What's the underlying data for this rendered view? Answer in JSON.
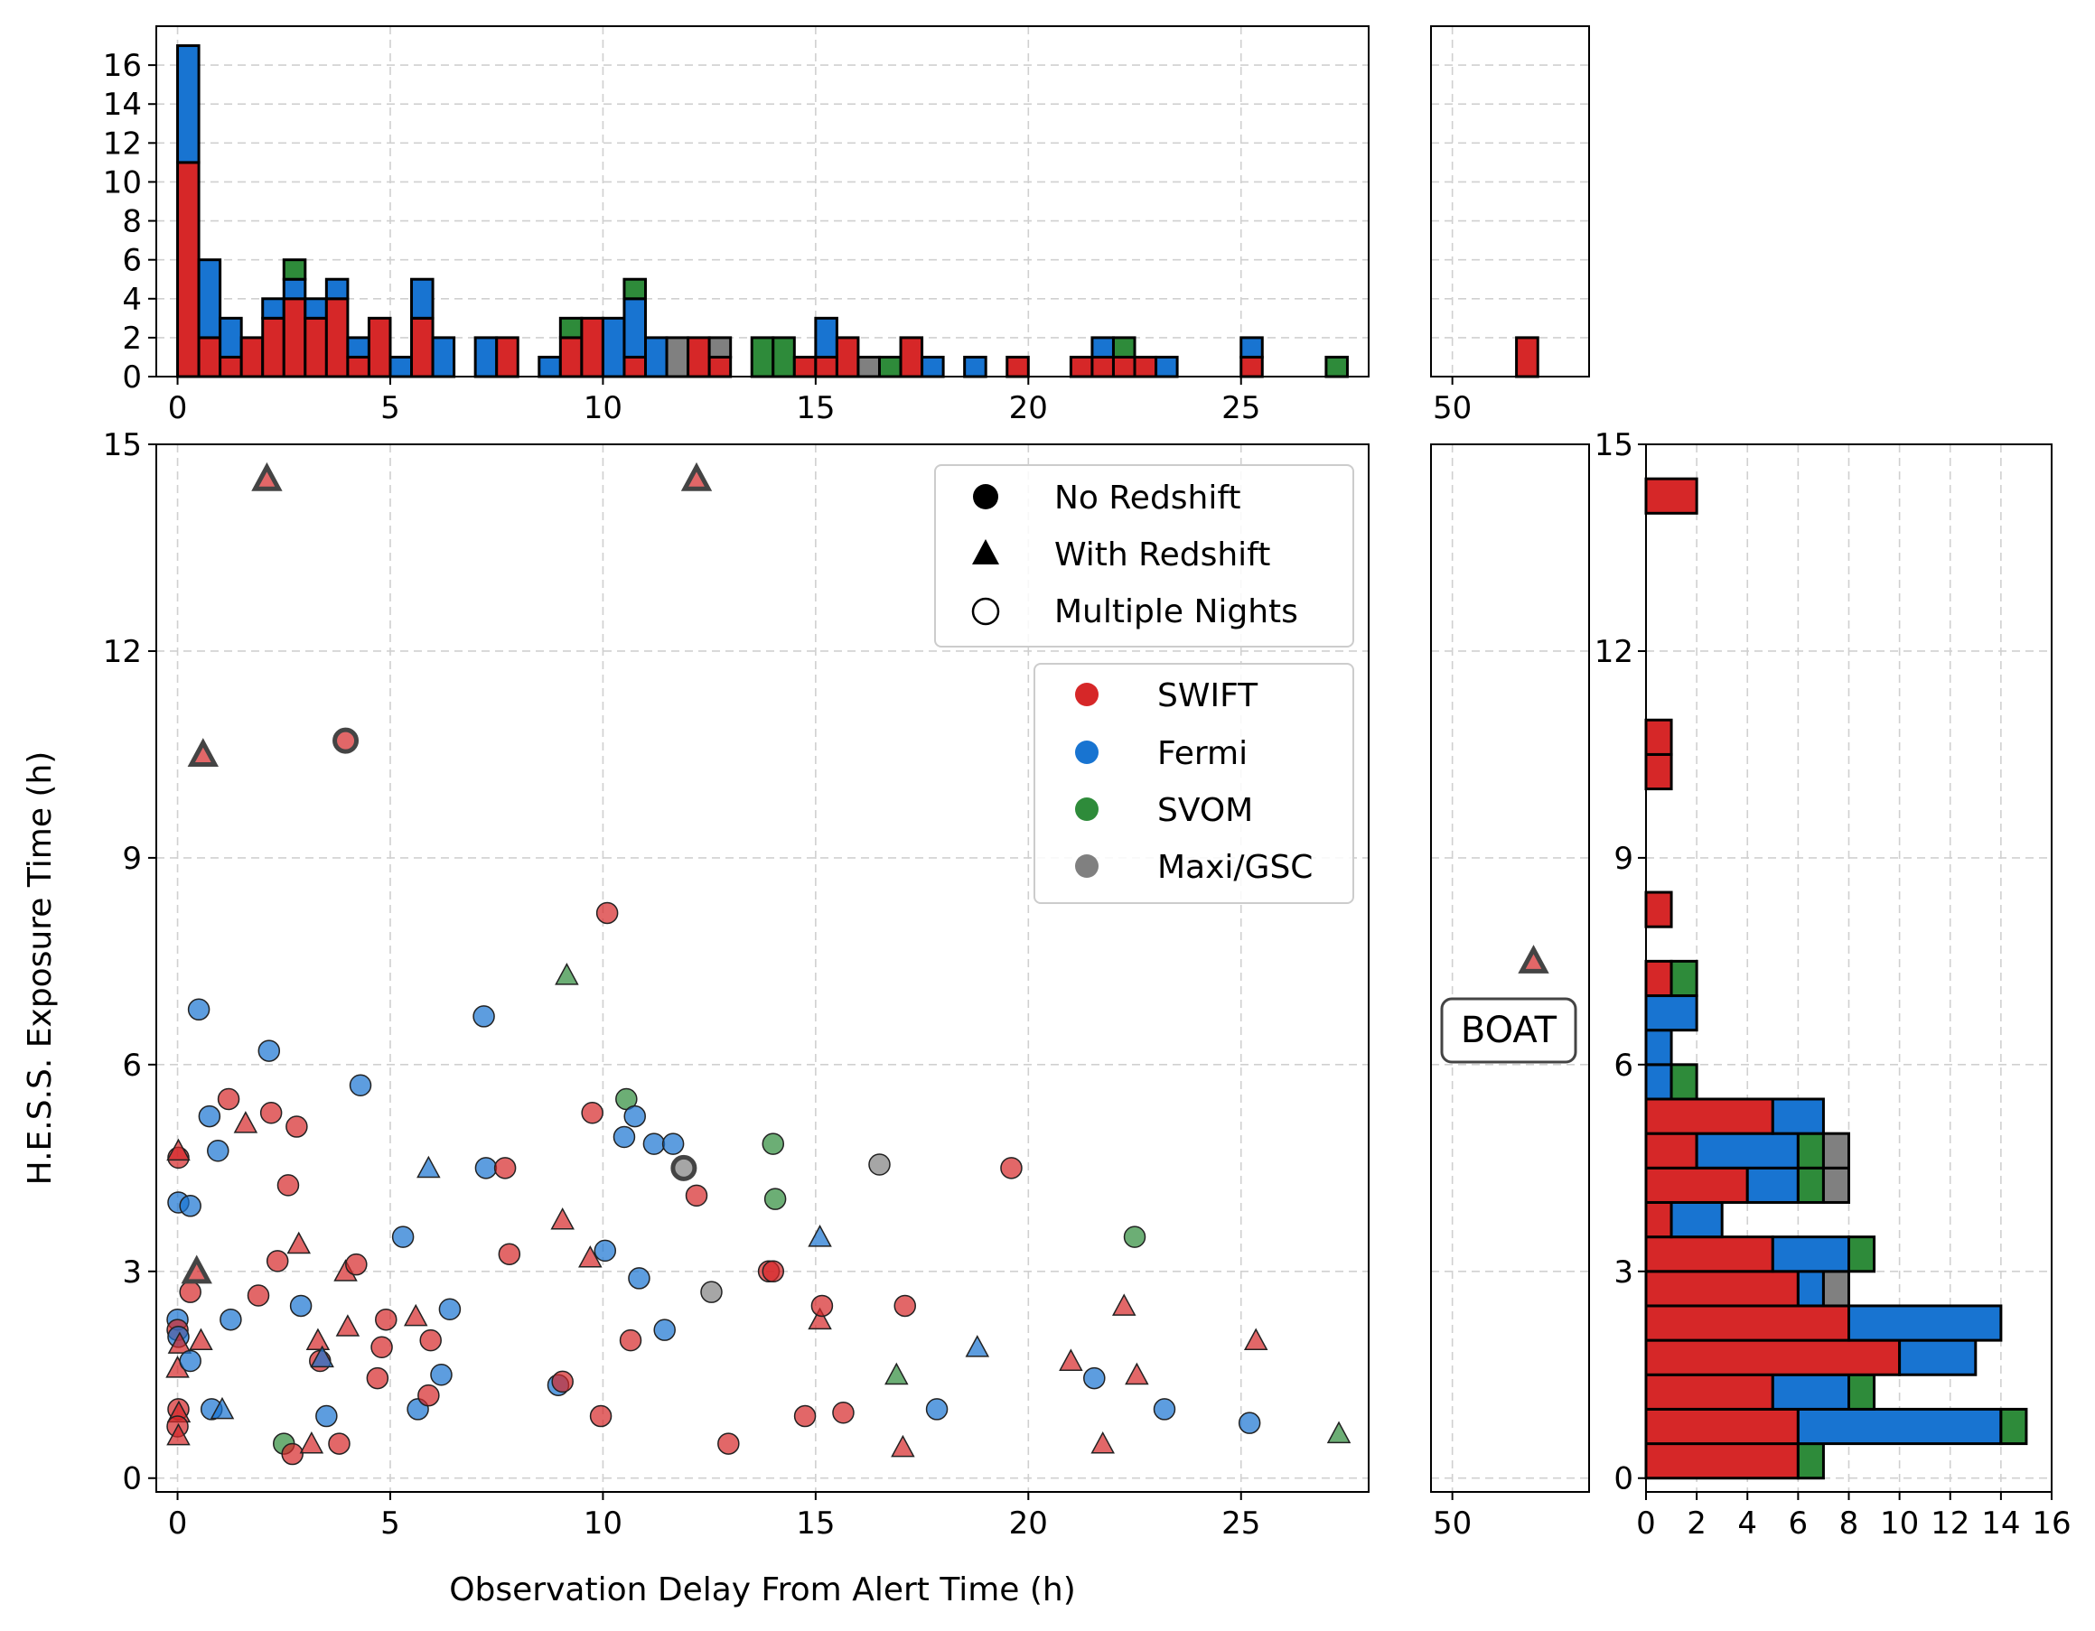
{
  "chart_data": {
    "type": "scatter",
    "xlabel": "Observation Delay From Alert Time (h)",
    "ylabel": "H.E.S.S. Exposure Time (h)",
    "xlim": [
      -0.5,
      28
    ],
    "ylim": [
      -0.2,
      15
    ],
    "xticks": [
      0,
      5,
      10,
      15,
      20,
      25
    ],
    "yticks": [
      0,
      3,
      6,
      9,
      12,
      15
    ],
    "colors": {
      "SWIFT": "#d62728",
      "Fermi": "#1874d1",
      "SVOM": "#2e8b3a",
      "Maxi/GSC": "#808080"
    },
    "legend_markers": [
      {
        "label": "No Redshift",
        "shape": "circle"
      },
      {
        "label": "With Redshift",
        "shape": "triangle"
      },
      {
        "label": "Multiple Nights",
        "shape": "open-circle"
      }
    ],
    "legend_instruments": [
      {
        "label": "SWIFT",
        "key": "SWIFT"
      },
      {
        "label": "Fermi",
        "key": "Fermi"
      },
      {
        "label": "SVOM",
        "key": "SVOM"
      },
      {
        "label": "Maxi/GSC",
        "key": "Maxi/GSC"
      }
    ],
    "points": [
      {
        "x": 0.02,
        "y": 4.65,
        "i": "SWIFT",
        "s": "c"
      },
      {
        "x": 0.02,
        "y": 4.75,
        "i": "SWIFT",
        "s": "t"
      },
      {
        "x": 0.02,
        "y": 4.0,
        "i": "Fermi",
        "s": "c"
      },
      {
        "x": 0.3,
        "y": 3.95,
        "i": "Fermi",
        "s": "c"
      },
      {
        "x": 0.0,
        "y": 2.3,
        "i": "Fermi",
        "s": "c"
      },
      {
        "x": 0.0,
        "y": 2.15,
        "i": "SWIFT",
        "s": "c"
      },
      {
        "x": 0.02,
        "y": 2.05,
        "i": "Fermi",
        "s": "c"
      },
      {
        "x": 0.05,
        "y": 1.95,
        "i": "SWIFT",
        "s": "t"
      },
      {
        "x": 0.0,
        "y": 1.6,
        "i": "SWIFT",
        "s": "t"
      },
      {
        "x": 0.3,
        "y": 1.7,
        "i": "Fermi",
        "s": "c"
      },
      {
        "x": 0.02,
        "y": 1.0,
        "i": "SWIFT",
        "s": "c"
      },
      {
        "x": 0.03,
        "y": 0.95,
        "i": "SWIFT",
        "s": "t"
      },
      {
        "x": 0.0,
        "y": 0.75,
        "i": "SWIFT",
        "s": "c"
      },
      {
        "x": 0.02,
        "y": 0.62,
        "i": "SWIFT",
        "s": "t"
      },
      {
        "x": 0.3,
        "y": 2.7,
        "i": "SWIFT",
        "s": "c"
      },
      {
        "x": 0.45,
        "y": 3.0,
        "i": "SWIFT",
        "s": "t",
        "m": true
      },
      {
        "x": 0.55,
        "y": 2.0,
        "i": "SWIFT",
        "s": "t"
      },
      {
        "x": 0.5,
        "y": 6.8,
        "i": "Fermi",
        "s": "c"
      },
      {
        "x": 0.6,
        "y": 10.5,
        "i": "SWIFT",
        "s": "t",
        "m": true
      },
      {
        "x": 0.75,
        "y": 5.25,
        "i": "Fermi",
        "s": "c"
      },
      {
        "x": 0.8,
        "y": 1.0,
        "i": "Fermi",
        "s": "c"
      },
      {
        "x": 0.95,
        "y": 4.75,
        "i": "Fermi",
        "s": "c"
      },
      {
        "x": 1.05,
        "y": 1.0,
        "i": "Fermi",
        "s": "t"
      },
      {
        "x": 1.2,
        "y": 5.5,
        "i": "SWIFT",
        "s": "c"
      },
      {
        "x": 1.25,
        "y": 2.3,
        "i": "Fermi",
        "s": "c"
      },
      {
        "x": 1.6,
        "y": 5.15,
        "i": "SWIFT",
        "s": "t"
      },
      {
        "x": 1.9,
        "y": 2.65,
        "i": "SWIFT",
        "s": "c"
      },
      {
        "x": 2.1,
        "y": 14.5,
        "i": "SWIFT",
        "s": "t",
        "m": true
      },
      {
        "x": 2.15,
        "y": 6.2,
        "i": "Fermi",
        "s": "c"
      },
      {
        "x": 2.2,
        "y": 5.3,
        "i": "SWIFT",
        "s": "c"
      },
      {
        "x": 2.35,
        "y": 3.15,
        "i": "SWIFT",
        "s": "c"
      },
      {
        "x": 2.5,
        "y": 0.5,
        "i": "SVOM",
        "s": "c"
      },
      {
        "x": 2.6,
        "y": 4.25,
        "i": "SWIFT",
        "s": "c"
      },
      {
        "x": 2.7,
        "y": 0.35,
        "i": "SWIFT",
        "s": "c"
      },
      {
        "x": 2.8,
        "y": 5.1,
        "i": "SWIFT",
        "s": "c"
      },
      {
        "x": 2.85,
        "y": 3.4,
        "i": "SWIFT",
        "s": "t"
      },
      {
        "x": 2.9,
        "y": 2.5,
        "i": "Fermi",
        "s": "c"
      },
      {
        "x": 3.15,
        "y": 0.5,
        "i": "SWIFT",
        "s": "t"
      },
      {
        "x": 3.3,
        "y": 2.0,
        "i": "SWIFT",
        "s": "t"
      },
      {
        "x": 3.35,
        "y": 1.7,
        "i": "SWIFT",
        "s": "c"
      },
      {
        "x": 3.4,
        "y": 1.75,
        "i": "Fermi",
        "s": "t"
      },
      {
        "x": 3.5,
        "y": 0.9,
        "i": "Fermi",
        "s": "c"
      },
      {
        "x": 3.8,
        "y": 0.5,
        "i": "SWIFT",
        "s": "c"
      },
      {
        "x": 3.95,
        "y": 10.7,
        "i": "SWIFT",
        "s": "c",
        "m": true
      },
      {
        "x": 3.95,
        "y": 3.0,
        "i": "SWIFT",
        "s": "t"
      },
      {
        "x": 4.0,
        "y": 2.2,
        "i": "SWIFT",
        "s": "t"
      },
      {
        "x": 4.2,
        "y": 3.1,
        "i": "SWIFT",
        "s": "c"
      },
      {
        "x": 4.3,
        "y": 5.7,
        "i": "Fermi",
        "s": "c"
      },
      {
        "x": 4.7,
        "y": 1.45,
        "i": "SWIFT",
        "s": "c"
      },
      {
        "x": 4.8,
        "y": 1.9,
        "i": "SWIFT",
        "s": "c"
      },
      {
        "x": 4.9,
        "y": 2.3,
        "i": "SWIFT",
        "s": "c"
      },
      {
        "x": 5.3,
        "y": 3.5,
        "i": "Fermi",
        "s": "c"
      },
      {
        "x": 5.6,
        "y": 2.35,
        "i": "SWIFT",
        "s": "t"
      },
      {
        "x": 5.65,
        "y": 1.0,
        "i": "Fermi",
        "s": "c"
      },
      {
        "x": 5.9,
        "y": 4.5,
        "i": "Fermi",
        "s": "t"
      },
      {
        "x": 5.9,
        "y": 1.2,
        "i": "SWIFT",
        "s": "c"
      },
      {
        "x": 5.95,
        "y": 2.0,
        "i": "SWIFT",
        "s": "c"
      },
      {
        "x": 6.2,
        "y": 1.5,
        "i": "Fermi",
        "s": "c"
      },
      {
        "x": 6.4,
        "y": 2.45,
        "i": "Fermi",
        "s": "c"
      },
      {
        "x": 7.2,
        "y": 6.7,
        "i": "Fermi",
        "s": "c"
      },
      {
        "x": 7.25,
        "y": 4.5,
        "i": "Fermi",
        "s": "c"
      },
      {
        "x": 7.7,
        "y": 4.5,
        "i": "SWIFT",
        "s": "c"
      },
      {
        "x": 7.8,
        "y": 3.25,
        "i": "SWIFT",
        "s": "c"
      },
      {
        "x": 8.95,
        "y": 1.35,
        "i": "Fermi",
        "s": "c"
      },
      {
        "x": 9.05,
        "y": 1.4,
        "i": "SWIFT",
        "s": "c"
      },
      {
        "x": 9.05,
        "y": 3.75,
        "i": "SWIFT",
        "s": "t"
      },
      {
        "x": 9.15,
        "y": 7.3,
        "i": "SVOM",
        "s": "t"
      },
      {
        "x": 9.7,
        "y": 3.2,
        "i": "SWIFT",
        "s": "t"
      },
      {
        "x": 9.75,
        "y": 5.3,
        "i": "SWIFT",
        "s": "c"
      },
      {
        "x": 9.95,
        "y": 0.9,
        "i": "SWIFT",
        "s": "c"
      },
      {
        "x": 10.05,
        "y": 3.3,
        "i": "Fermi",
        "s": "c"
      },
      {
        "x": 10.1,
        "y": 8.2,
        "i": "SWIFT",
        "s": "c"
      },
      {
        "x": 10.5,
        "y": 4.95,
        "i": "Fermi",
        "s": "c"
      },
      {
        "x": 10.55,
        "y": 5.5,
        "i": "SVOM",
        "s": "c"
      },
      {
        "x": 10.65,
        "y": 2.0,
        "i": "SWIFT",
        "s": "c"
      },
      {
        "x": 10.75,
        "y": 5.25,
        "i": "Fermi",
        "s": "c"
      },
      {
        "x": 10.85,
        "y": 2.9,
        "i": "Fermi",
        "s": "c"
      },
      {
        "x": 11.2,
        "y": 4.85,
        "i": "Fermi",
        "s": "c"
      },
      {
        "x": 11.45,
        "y": 2.15,
        "i": "Fermi",
        "s": "c"
      },
      {
        "x": 11.65,
        "y": 4.85,
        "i": "Fermi",
        "s": "c"
      },
      {
        "x": 11.9,
        "y": 4.5,
        "i": "Maxi/GSC",
        "s": "c",
        "m": true
      },
      {
        "x": 12.2,
        "y": 14.5,
        "i": "SWIFT",
        "s": "t",
        "m": true
      },
      {
        "x": 12.2,
        "y": 4.1,
        "i": "SWIFT",
        "s": "c"
      },
      {
        "x": 12.55,
        "y": 2.7,
        "i": "Maxi/GSC",
        "s": "c"
      },
      {
        "x": 12.95,
        "y": 0.5,
        "i": "SWIFT",
        "s": "c"
      },
      {
        "x": 13.9,
        "y": 3.0,
        "i": "SWIFT",
        "s": "c"
      },
      {
        "x": 14.0,
        "y": 3.0,
        "i": "SWIFT",
        "s": "c"
      },
      {
        "x": 14.0,
        "y": 4.85,
        "i": "SVOM",
        "s": "c"
      },
      {
        "x": 14.05,
        "y": 4.05,
        "i": "SVOM",
        "s": "c"
      },
      {
        "x": 14.75,
        "y": 0.9,
        "i": "SWIFT",
        "s": "c"
      },
      {
        "x": 15.1,
        "y": 3.5,
        "i": "Fermi",
        "s": "t"
      },
      {
        "x": 15.1,
        "y": 2.3,
        "i": "SWIFT",
        "s": "t"
      },
      {
        "x": 15.15,
        "y": 2.5,
        "i": "SWIFT",
        "s": "c"
      },
      {
        "x": 15.65,
        "y": 0.95,
        "i": "SWIFT",
        "s": "c"
      },
      {
        "x": 16.5,
        "y": 4.55,
        "i": "Maxi/GSC",
        "s": "c"
      },
      {
        "x": 16.9,
        "y": 1.5,
        "i": "SVOM",
        "s": "t"
      },
      {
        "x": 17.05,
        "y": 0.45,
        "i": "SWIFT",
        "s": "t"
      },
      {
        "x": 17.1,
        "y": 2.5,
        "i": "SWIFT",
        "s": "c"
      },
      {
        "x": 17.85,
        "y": 1.0,
        "i": "Fermi",
        "s": "c"
      },
      {
        "x": 18.8,
        "y": 1.9,
        "i": "Fermi",
        "s": "t"
      },
      {
        "x": 19.6,
        "y": 4.5,
        "i": "SWIFT",
        "s": "c"
      },
      {
        "x": 21.0,
        "y": 1.7,
        "i": "SWIFT",
        "s": "t"
      },
      {
        "x": 21.55,
        "y": 1.45,
        "i": "Fermi",
        "s": "c"
      },
      {
        "x": 21.75,
        "y": 0.5,
        "i": "SWIFT",
        "s": "t"
      },
      {
        "x": 22.25,
        "y": 2.5,
        "i": "SWIFT",
        "s": "t"
      },
      {
        "x": 22.5,
        "y": 3.5,
        "i": "SVOM",
        "s": "c"
      },
      {
        "x": 22.55,
        "y": 1.5,
        "i": "SWIFT",
        "s": "t"
      },
      {
        "x": 23.2,
        "y": 1.0,
        "i": "Fermi",
        "s": "c"
      },
      {
        "x": 25.2,
        "y": 0.8,
        "i": "Fermi",
        "s": "c"
      },
      {
        "x": 25.35,
        "y": 2.0,
        "i": "SWIFT",
        "s": "t"
      },
      {
        "x": 27.3,
        "y": 0.65,
        "i": "SVOM",
        "s": "t"
      }
    ],
    "top_histogram": {
      "bin_start": 0,
      "bin_width": 0.5,
      "ylim": [
        0,
        18
      ],
      "yticks": [
        0,
        2,
        4,
        6,
        8,
        10,
        12,
        14,
        16
      ],
      "bins": [
        {
          "b": 0,
          "SWIFT": 11,
          "Fermi": 6
        },
        {
          "b": 1,
          "SWIFT": 2,
          "Fermi": 4
        },
        {
          "b": 2,
          "SWIFT": 1,
          "Fermi": 2
        },
        {
          "b": 3,
          "SWIFT": 2
        },
        {
          "b": 4,
          "SWIFT": 3,
          "Fermi": 1
        },
        {
          "b": 5,
          "SWIFT": 4,
          "SVOM": 1,
          "Fermi": 1
        },
        {
          "b": 6,
          "SWIFT": 3,
          "Fermi": 1
        },
        {
          "b": 7,
          "SWIFT": 4,
          "Fermi": 1
        },
        {
          "b": 8,
          "SWIFT": 1,
          "Fermi": 1
        },
        {
          "b": 9,
          "SWIFT": 3
        },
        {
          "b": 10,
          "Fermi": 1
        },
        {
          "b": 11,
          "SWIFT": 3,
          "Fermi": 2
        },
        {
          "b": 12,
          "Fermi": 2
        },
        {
          "b": 14,
          "Fermi": 2
        },
        {
          "b": 15,
          "SWIFT": 2
        },
        {
          "b": 17,
          "Fermi": 1
        },
        {
          "b": 18,
          "SWIFT": 2,
          "SVOM": 1
        },
        {
          "b": 19,
          "SWIFT": 3
        },
        {
          "b": 20,
          "Fermi": 3
        },
        {
          "b": 21,
          "SWIFT": 1,
          "Fermi": 3,
          "SVOM": 1
        },
        {
          "b": 22,
          "Fermi": 2
        },
        {
          "b": 23,
          "Maxi/GSC": 2
        },
        {
          "b": 24,
          "SWIFT": 2
        },
        {
          "b": 25,
          "SWIFT": 1,
          "Maxi/GSC": 1
        },
        {
          "b": 27,
          "SVOM": 2
        },
        {
          "b": 28,
          "SVOM": 2
        },
        {
          "b": 29,
          "SWIFT": 1
        },
        {
          "b": 30,
          "Fermi": 2,
          "SWIFT": 1
        },
        {
          "b": 31,
          "SWIFT": 2
        },
        {
          "b": 32,
          "Maxi/GSC": 1
        },
        {
          "b": 33,
          "SVOM": 1
        },
        {
          "b": 34,
          "SWIFT": 2
        },
        {
          "b": 35,
          "Fermi": 1
        },
        {
          "b": 37,
          "Fermi": 1
        },
        {
          "b": 39,
          "SWIFT": 1
        },
        {
          "b": 42,
          "SWIFT": 1
        },
        {
          "b": 43,
          "SWIFT": 1,
          "Fermi": 1
        },
        {
          "b": 44,
          "SWIFT": 1,
          "SVOM": 1
        },
        {
          "b": 45,
          "SWIFT": 1
        },
        {
          "b": 46,
          "Fermi": 1
        },
        {
          "b": 50,
          "SWIFT": 1,
          "Fermi": 1
        },
        {
          "b": 54,
          "SVOM": 1
        }
      ]
    },
    "boat": {
      "label": "BOAT",
      "x": 51.9,
      "y": 7.5,
      "xlim": [
        49.5,
        53.2
      ],
      "xticks": [
        50
      ],
      "instrument": "SWIFT",
      "shape": "triangle",
      "multi_night": true,
      "hist_bin": [
        51.5,
        52.0
      ],
      "hist_value": 2
    },
    "right_histogram": {
      "bin_start": 0,
      "bin_width": 0.5,
      "xlim": [
        0,
        16
      ],
      "xticks": [
        0,
        2,
        4,
        6,
        8,
        10,
        12,
        14,
        16
      ],
      "bins": [
        {
          "b": 0,
          "SWIFT": 6,
          "SVOM": 1
        },
        {
          "b": 1,
          "SWIFT": 6,
          "Fermi": 8,
          "SVOM": 1
        },
        {
          "b": 2,
          "SWIFT": 5,
          "Fermi": 3,
          "SVOM": 1
        },
        {
          "b": 3,
          "SWIFT": 10,
          "Fermi": 3
        },
        {
          "b": 4,
          "SWIFT": 8,
          "Fermi": 6
        },
        {
          "b": 5,
          "SWIFT": 6,
          "Fermi": 1,
          "Maxi/GSC": 1
        },
        {
          "b": 6,
          "SWIFT": 5,
          "Fermi": 3,
          "SVOM": 1
        },
        {
          "b": 7,
          "SWIFT": 1,
          "Fermi": 2
        },
        {
          "b": 8,
          "SWIFT": 4,
          "Fermi": 2,
          "SVOM": 1,
          "Maxi/GSC": 1
        },
        {
          "b": 9,
          "SWIFT": 2,
          "Fermi": 4,
          "SVOM": 1,
          "Maxi/GSC": 1
        },
        {
          "b": 10,
          "SWIFT": 5,
          "Fermi": 2
        },
        {
          "b": 11,
          "Fermi": 1,
          "SVOM": 1
        },
        {
          "b": 12,
          "Fermi": 1
        },
        {
          "b": 13,
          "Fermi": 2
        },
        {
          "b": 14,
          "SWIFT": 1,
          "SVOM": 1
        },
        {
          "b": 16,
          "SWIFT": 1
        },
        {
          "b": 20,
          "SWIFT": 1
        },
        {
          "b": 21,
          "SWIFT": 1
        },
        {
          "b": 28,
          "SWIFT": 2
        }
      ]
    }
  }
}
